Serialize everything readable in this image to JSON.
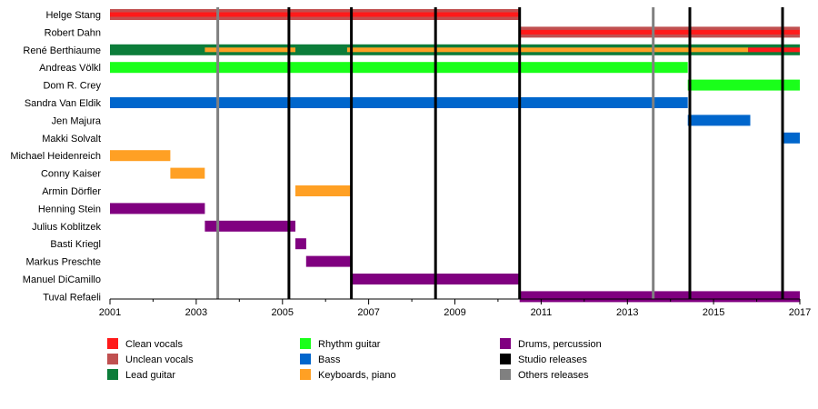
{
  "chart_data": {
    "type": "timeline",
    "x_axis": {
      "min": 2001,
      "max": 2017,
      "tick_labels": [
        "2001",
        "2003",
        "2005",
        "2007",
        "2009",
        "2011",
        "2013",
        "2015",
        "2017"
      ]
    },
    "members": [
      "Helge Stang",
      "Robert Dahn",
      "René Berthiaume",
      "Andreas Völkl",
      "Dom R. Crey",
      "Sandra Van Eldik",
      "Jen Majura",
      "Makki Solvalt",
      "Michael Heidenreich",
      "Conny Kaiser",
      "Armin Dörfler",
      "Henning Stein",
      "Julius Koblitzek",
      "Basti Kriegl",
      "Markus Preschte",
      "Manuel DiCamillo",
      "Tuval Refaeli"
    ],
    "roles": {
      "clean_vocals": {
        "label": "Clean vocals",
        "color": "#ff1a1a"
      },
      "unclean_vocals": {
        "label": "Unclean vocals",
        "color": "#c05050"
      },
      "lead_guitar": {
        "label": "Lead guitar",
        "color": "#0c7d3a"
      },
      "rhythm_guitar": {
        "label": "Rhythm guitar",
        "color": "#1aff1a"
      },
      "bass": {
        "label": "Bass",
        "color": "#0066cc"
      },
      "keyboards": {
        "label": "Keyboards, piano",
        "color": "#ffa024"
      },
      "drums": {
        "label": "Drums, percussion",
        "color": "#800080"
      },
      "studio_releases": {
        "label": "Studio releases",
        "color": "#000000"
      },
      "other_releases": {
        "label": "Others releases",
        "color": "#808080"
      }
    },
    "bars": [
      {
        "member": 0,
        "role": "unclean_vocals",
        "start": 2001.0,
        "end": 2010.5
      },
      {
        "member": 0,
        "role": "clean_vocals",
        "start": 2001.0,
        "end": 2010.5,
        "overlay": true
      },
      {
        "member": 1,
        "role": "unclean_vocals",
        "start": 2010.5,
        "end": 2017.0
      },
      {
        "member": 1,
        "role": "clean_vocals",
        "start": 2010.5,
        "end": 2017.0,
        "overlay": true
      },
      {
        "member": 2,
        "role": "lead_guitar",
        "start": 2001.0,
        "end": 2017.0
      },
      {
        "member": 2,
        "role": "keyboards",
        "start": 2003.2,
        "end": 2005.3,
        "overlay": true
      },
      {
        "member": 2,
        "role": "keyboards",
        "start": 2006.5,
        "end": 2015.8,
        "overlay": true
      },
      {
        "member": 2,
        "role": "clean_vocals",
        "start": 2015.8,
        "end": 2017.0,
        "overlay": true
      },
      {
        "member": 3,
        "role": "rhythm_guitar",
        "start": 2001.0,
        "end": 2014.4
      },
      {
        "member": 4,
        "role": "rhythm_guitar",
        "start": 2014.4,
        "end": 2017.0
      },
      {
        "member": 5,
        "role": "bass",
        "start": 2001.0,
        "end": 2014.4
      },
      {
        "member": 6,
        "role": "bass",
        "start": 2014.4,
        "end": 2015.85
      },
      {
        "member": 7,
        "role": "bass",
        "start": 2016.6,
        "end": 2017.0
      },
      {
        "member": 8,
        "role": "keyboards",
        "start": 2001.0,
        "end": 2002.4
      },
      {
        "member": 9,
        "role": "keyboards",
        "start": 2002.4,
        "end": 2003.2
      },
      {
        "member": 10,
        "role": "keyboards",
        "start": 2005.3,
        "end": 2006.6
      },
      {
        "member": 11,
        "role": "drums",
        "start": 2001.0,
        "end": 2003.2
      },
      {
        "member": 12,
        "role": "drums",
        "start": 2003.2,
        "end": 2005.3
      },
      {
        "member": 13,
        "role": "drums",
        "start": 2005.3,
        "end": 2005.55
      },
      {
        "member": 14,
        "role": "drums",
        "start": 2005.55,
        "end": 2006.6
      },
      {
        "member": 15,
        "role": "drums",
        "start": 2006.6,
        "end": 2010.5
      },
      {
        "member": 16,
        "role": "drums",
        "start": 2010.5,
        "end": 2017.0
      }
    ],
    "releases": [
      {
        "year": 2003.5,
        "kind": "other_releases"
      },
      {
        "year": 2005.15,
        "kind": "studio_releases"
      },
      {
        "year": 2006.6,
        "kind": "studio_releases"
      },
      {
        "year": 2008.55,
        "kind": "studio_releases"
      },
      {
        "year": 2010.5,
        "kind": "studio_releases"
      },
      {
        "year": 2013.6,
        "kind": "other_releases"
      },
      {
        "year": 2014.45,
        "kind": "studio_releases"
      },
      {
        "year": 2016.6,
        "kind": "studio_releases"
      }
    ],
    "legend_placement": "bottom",
    "legend": [
      "clean_vocals",
      "unclean_vocals",
      "lead_guitar",
      "rhythm_guitar",
      "bass",
      "keyboards",
      "drums",
      "studio_releases",
      "other_releases"
    ]
  }
}
